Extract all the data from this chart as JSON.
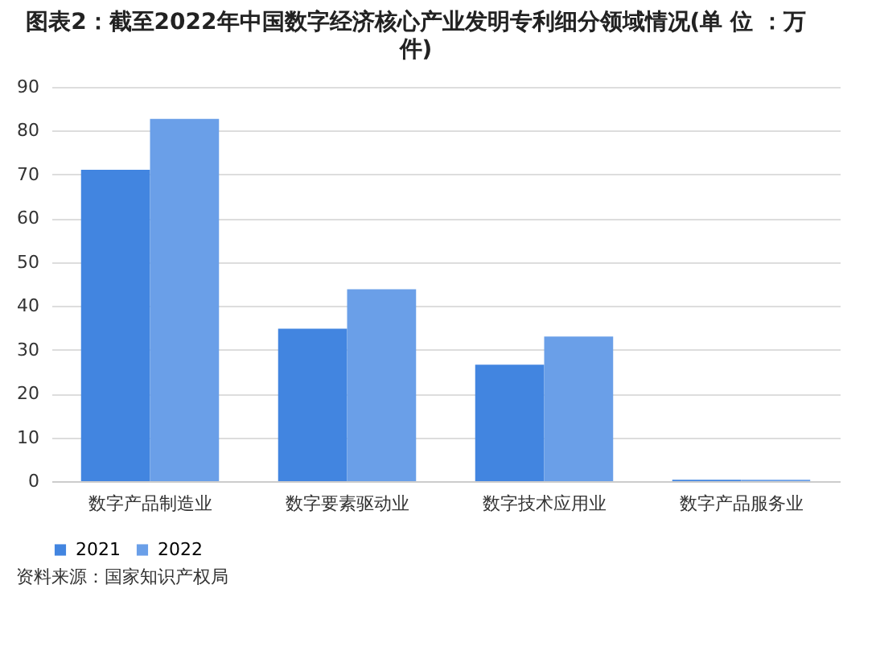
{
  "chart_data": {
    "type": "bar",
    "title": "图表2：截至2022年中国数字经济核心产业发明专利细分领域情况(单 位 ：万件)",
    "categories": [
      "数字产品制造业",
      "数字要素驱动业",
      "数字技术应用业",
      "数字产品服务业"
    ],
    "series": [
      {
        "name": "2021",
        "color": "#4285e0",
        "values": [
          71.1,
          34.8,
          26.6,
          0.3
        ]
      },
      {
        "name": "2022",
        "color": "#6a9fe8",
        "values": [
          82.7,
          43.8,
          33.0,
          0.3
        ]
      }
    ],
    "ylim": [
      0,
      90
    ],
    "yticks": [
      0,
      10,
      20,
      30,
      40,
      50,
      60,
      70,
      80,
      90
    ],
    "grid": "y",
    "legend": "bottom",
    "annotations": [
      "资料来源：国家知识产权局"
    ]
  }
}
